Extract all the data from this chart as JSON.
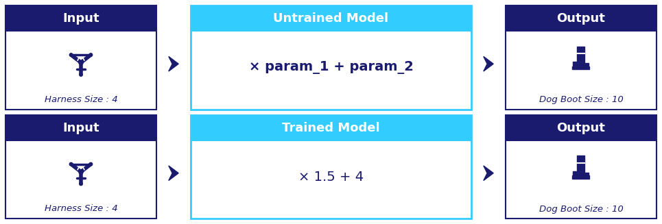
{
  "bg_color": "#ffffff",
  "dark_navy": "#1a1a6e",
  "cyan_header": "#33ccff",
  "white": "#ffffff",
  "light_border": "#aaddff",
  "arrow_color": "#1a1a6e",
  "row1": {
    "box1_title": "Input",
    "box1_label": "Harness Size : 4",
    "box2_title": "Untrained Model",
    "box2_formula": "× param_1 + param_2",
    "box3_title": "Output",
    "box3_label": "Dog Boot Size : 10"
  },
  "row2": {
    "box1_title": "Input",
    "box1_label": "Harness Size : 4",
    "box2_title": "Trained Model",
    "box2_formula": "× 1.5 + 4",
    "box3_title": "Output",
    "box3_label": "Dog Boot Size : 10"
  },
  "fig_width": 9.65,
  "fig_height": 3.27,
  "dpi": 100
}
